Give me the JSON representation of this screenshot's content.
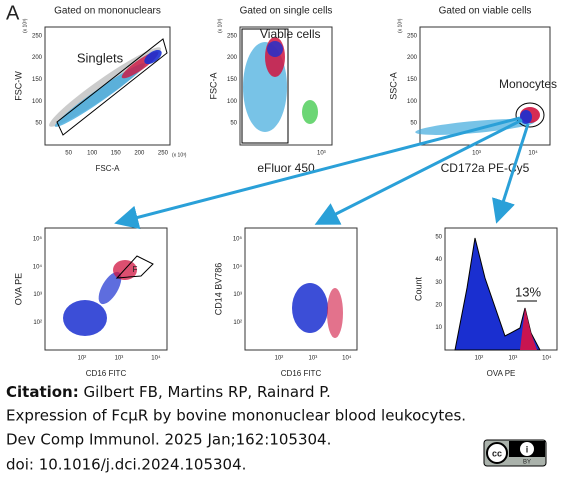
{
  "panel_label": "A",
  "plots": [
    {
      "title": "Gated on mononuclears",
      "x_label": "FSC-A",
      "y_label": "FSC-W",
      "gate": "Singlets",
      "x_scale": "(x 10³)",
      "y_scale": "(x 10³)",
      "x_ticks": [
        50,
        100,
        150,
        200,
        250
      ],
      "y_ticks": [
        50,
        100,
        150,
        200,
        250
      ]
    },
    {
      "title": "Gated on single cells",
      "x_label": "eFluor 450",
      "y_label": "FSC-A",
      "gate": "Viable cells",
      "y_scale": "(x 10³)",
      "x_ticks": [
        "10³"
      ],
      "y_ticks": [
        50,
        100,
        150,
        200,
        250
      ]
    },
    {
      "title": "Gated on viable cells",
      "x_label": "CD172a PE-Cy5",
      "y_label": "SSC-A",
      "gate": "Monocytes",
      "y_scale": "(x 10³)",
      "x_ticks": [
        "10³",
        "10⁴"
      ],
      "y_ticks": [
        50,
        100,
        150,
        200,
        250
      ]
    },
    {
      "x_label": "CD16 FITC",
      "y_label": "OVA PE",
      "gate": "F",
      "x_ticks": [
        "10²",
        "10³",
        "10⁴"
      ],
      "y_ticks": [
        "10²",
        "10³",
        "10⁴",
        "10⁵"
      ]
    },
    {
      "x_label": "CD16 FITC",
      "y_label": "CD14 BV786",
      "x_ticks": [
        "10²",
        "10³",
        "10⁴"
      ],
      "y_ticks": [
        "10²",
        "10³",
        "10⁴",
        "10⁵"
      ]
    },
    {
      "x_label": "OVA PE",
      "y_label": "Count",
      "gate": "13%",
      "x_ticks": [
        "10²",
        "10³",
        "10⁴"
      ],
      "y_ticks": [
        10,
        20,
        30,
        40,
        50
      ]
    }
  ],
  "citation": {
    "label": "Citation:",
    "authors": "Gilbert FB, Martins RP, Rainard P.",
    "title": "Expression of FcμR by bovine mononuclear blood leukocytes.",
    "journal": "Dev Comp Immunol. 2025 Jan;162:105304.",
    "doi": "doi: 10.1016/j.dci.2024.105304."
  },
  "license": {
    "badge": "BY"
  }
}
